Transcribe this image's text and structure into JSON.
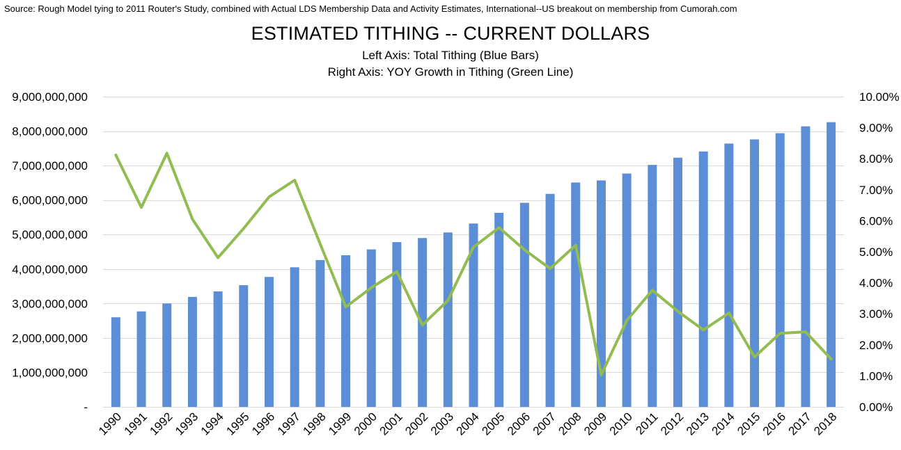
{
  "source": "Source: Rough Model tying to 2011 Router's Study, combined with Actual LDS Membership Data and Activity Estimates, International--US breakout on membership from Cumorah.com",
  "colors": {
    "bars": "#5B8ED6",
    "line": "#92BC52",
    "grid": "#D9D9D9"
  },
  "chart_data": {
    "type": "bar",
    "title": "ESTIMATED TITHING -- CURRENT DOLLARS",
    "subtitle_lines": [
      "Left Axis: Total Tithing (Blue Bars)",
      "Right Axis: YOY Growth in Tithing (Green Line)"
    ],
    "categories": [
      "1990",
      "1991",
      "1992",
      "1993",
      "1994",
      "1995",
      "1996",
      "1997",
      "1998",
      "1999",
      "2000",
      "2001",
      "2002",
      "2003",
      "2004",
      "2005",
      "2006",
      "2007",
      "2008",
      "2009",
      "2010",
      "2011",
      "2012",
      "2013",
      "2014",
      "2015",
      "2016",
      "2017",
      "2018"
    ],
    "series": [
      {
        "axis": "left",
        "type": "bar",
        "values": [
          2600000000,
          2770000000,
          3000000000,
          3190000000,
          3350000000,
          3530000000,
          3770000000,
          4050000000,
          4260000000,
          4400000000,
          4570000000,
          4780000000,
          4900000000,
          5060000000,
          5320000000,
          5630000000,
          5920000000,
          6180000000,
          6510000000,
          6570000000,
          6770000000,
          7020000000,
          7230000000,
          7410000000,
          7640000000,
          7760000000,
          7940000000,
          8140000000,
          8260000000
        ]
      },
      {
        "axis": "right",
        "type": "line",
        "values": [
          0.0812,
          0.0643,
          0.0818,
          0.0605,
          0.0481,
          0.0575,
          0.0677,
          0.0731,
          0.0525,
          0.0322,
          0.0384,
          0.0436,
          0.0264,
          0.0343,
          0.0515,
          0.0578,
          0.0506,
          0.0446,
          0.0521,
          0.0103,
          0.0278,
          0.0376,
          0.0308,
          0.0248,
          0.0303,
          0.0161,
          0.0237,
          0.0242,
          0.0154
        ]
      }
    ],
    "left_axis": {
      "min": 0,
      "max": 9000000000,
      "ticks": [
        "-",
        "1,000,000,000",
        "2,000,000,000",
        "3,000,000,000",
        "4,000,000,000",
        "5,000,000,000",
        "6,000,000,000",
        "7,000,000,000",
        "8,000,000,000",
        "9,000,000,000"
      ]
    },
    "right_axis": {
      "min": 0,
      "max": 0.1,
      "ticks": [
        "0.00%",
        "1.00%",
        "2.00%",
        "3.00%",
        "4.00%",
        "5.00%",
        "6.00%",
        "7.00%",
        "8.00%",
        "9.00%",
        "10.00%"
      ]
    },
    "grid": true,
    "legend": "none"
  }
}
